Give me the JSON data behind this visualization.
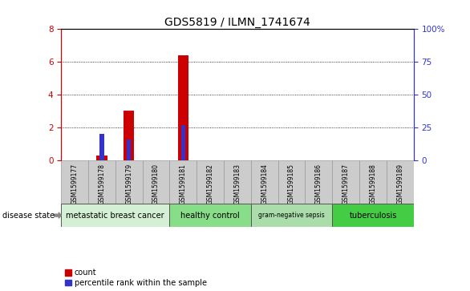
{
  "title": "GDS5819 / ILMN_1741674",
  "samples": [
    "GSM1599177",
    "GSM1599178",
    "GSM1599179",
    "GSM1599180",
    "GSM1599181",
    "GSM1599182",
    "GSM1599183",
    "GSM1599184",
    "GSM1599185",
    "GSM1599186",
    "GSM1599187",
    "GSM1599188",
    "GSM1599189"
  ],
  "count_values": [
    0,
    0.3,
    3.0,
    0,
    6.4,
    0,
    0,
    0,
    0,
    0,
    0,
    0,
    0
  ],
  "percentile_values": [
    0,
    20.0,
    16.0,
    0,
    27.0,
    0,
    0,
    0,
    0,
    0,
    0,
    0,
    0
  ],
  "ylim_left": [
    0,
    8
  ],
  "ylim_right": [
    0,
    100
  ],
  "yticks_left": [
    0,
    2,
    4,
    6,
    8
  ],
  "yticks_right": [
    0,
    25,
    50,
    75,
    100
  ],
  "ytick_labels_right": [
    "0",
    "25",
    "50",
    "75",
    "100%"
  ],
  "count_color": "#cc0000",
  "percentile_color": "#3333cc",
  "groups": [
    {
      "label": "metastatic breast cancer",
      "start": 0,
      "end": 4,
      "color": "#d4f0d4"
    },
    {
      "label": "healthy control",
      "start": 4,
      "end": 7,
      "color": "#88dd88"
    },
    {
      "label": "gram-negative sepsis",
      "start": 7,
      "end": 10,
      "color": "#aaddaa"
    },
    {
      "label": "tuberculosis",
      "start": 10,
      "end": 13,
      "color": "#44cc44"
    }
  ],
  "disease_state_label": "disease state",
  "legend_count_label": "count",
  "legend_percentile_label": "percentile rank within the sample",
  "bar_width": 0.4,
  "sample_box_color": "#cccccc",
  "background_color": "#ffffff"
}
